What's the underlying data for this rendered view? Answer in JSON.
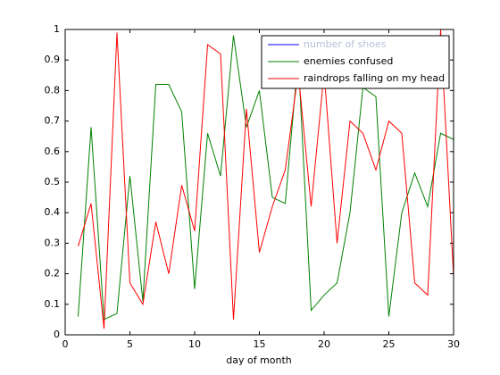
{
  "chart_data": {
    "type": "line",
    "xlabel": "day of month",
    "x": [
      1,
      2,
      3,
      4,
      5,
      6,
      7,
      8,
      9,
      10,
      11,
      12,
      13,
      14,
      15,
      16,
      17,
      18,
      19,
      20,
      21,
      22,
      23,
      24,
      25,
      26,
      27,
      28,
      29,
      30
    ],
    "series": [
      {
        "name": "number of shoes",
        "color": "#0000ff",
        "visible": false,
        "values": [
          null,
          null,
          null,
          null,
          null,
          null,
          null,
          null,
          null,
          null,
          null,
          null,
          null,
          null,
          null,
          null,
          null,
          null,
          null,
          null,
          null,
          null,
          null,
          null,
          null,
          null,
          null,
          null,
          null,
          null
        ]
      },
      {
        "name": "enemies confused",
        "color": "#008000",
        "values": [
          0.06,
          0.68,
          0.05,
          0.07,
          0.52,
          0.11,
          0.82,
          0.82,
          0.73,
          0.15,
          0.66,
          0.52,
          0.98,
          0.68,
          0.8,
          0.45,
          0.43,
          0.91,
          0.08,
          0.13,
          0.17,
          0.4,
          0.81,
          0.78,
          0.06,
          0.4,
          0.53,
          0.42,
          0.66,
          0.64
        ]
      },
      {
        "name": "raindrops falling on my head",
        "color": "#ff0000",
        "values": [
          0.29,
          0.43,
          0.02,
          0.99,
          0.17,
          0.1,
          0.37,
          0.2,
          0.49,
          0.34,
          0.95,
          0.92,
          0.05,
          0.74,
          0.27,
          0.42,
          0.54,
          0.86,
          0.42,
          0.86,
          0.3,
          0.7,
          0.66,
          0.54,
          0.7,
          0.66,
          0.17,
          0.13,
          1.0,
          0.19
        ]
      }
    ],
    "xlim": [
      0,
      30
    ],
    "xticks": [
      0,
      5,
      10,
      15,
      20,
      25,
      30
    ],
    "ylim": [
      0,
      1
    ],
    "yticks": [
      0,
      0.1,
      0.2,
      0.3,
      0.4,
      0.5,
      0.6,
      0.7,
      0.8,
      0.9,
      1
    ],
    "legend": "upper right"
  }
}
